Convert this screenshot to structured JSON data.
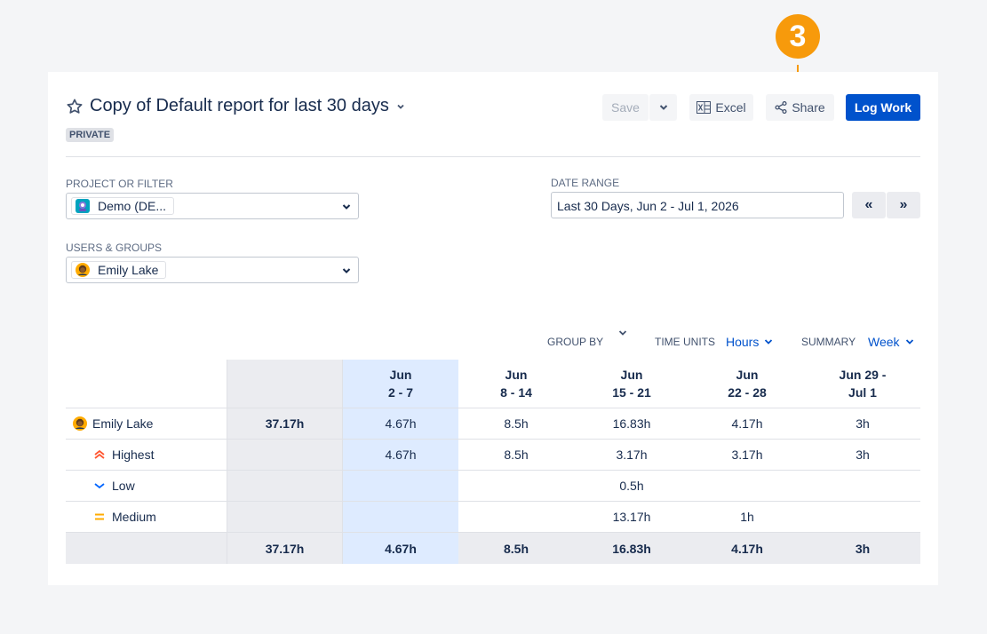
{
  "callout": {
    "number": "3"
  },
  "report": {
    "title": "Copy of Default report for last 30 days",
    "badge": "PRIVATE"
  },
  "toolbar": {
    "save_label": "Save",
    "excel_label": "Excel",
    "share_label": "Share",
    "log_work_label": "Log Work"
  },
  "filters": {
    "project_label": "PROJECT OR FILTER",
    "project_value": "Demo (DE...",
    "users_label": "USERS & GROUPS",
    "users_value": "Emily Lake",
    "date_label": "DATE RANGE",
    "date_value": "Last 30 Days, Jun 2 - Jul 1, 2026",
    "prev_label": "«",
    "next_label": "»"
  },
  "controls": {
    "group_by_label": "GROUP BY",
    "time_units_label": "TIME UNITS",
    "time_units_value": "Hours",
    "summary_label": "SUMMARY",
    "summary_value": "Week"
  },
  "table": {
    "columns": [
      {
        "line1": "Jun",
        "line2": "2 - 7"
      },
      {
        "line1": "Jun",
        "line2": "8 - 14"
      },
      {
        "line1": "Jun",
        "line2": "15 - 21"
      },
      {
        "line1": "Jun",
        "line2": "22 - 28"
      },
      {
        "line1": "Jun 29 -",
        "line2": "Jul 1"
      }
    ],
    "rows": [
      {
        "label": "Emily Lake",
        "total": "37.17h",
        "values": [
          "4.67h",
          "8.5h",
          "16.83h",
          "4.17h",
          "3h"
        ]
      },
      {
        "label": "Highest",
        "total": "",
        "values": [
          "4.67h",
          "8.5h",
          "3.17h",
          "3.17h",
          "3h"
        ]
      },
      {
        "label": "Low",
        "total": "",
        "values": [
          "",
          "",
          "0.5h",
          "",
          ""
        ]
      },
      {
        "label": "Medium",
        "total": "",
        "values": [
          "",
          "",
          "13.17h",
          "1h",
          ""
        ]
      }
    ],
    "totals": {
      "total": "37.17h",
      "values": [
        "4.67h",
        "8.5h",
        "16.83h",
        "4.17h",
        "3h"
      ]
    }
  },
  "colors": {
    "accent": "#0052cc",
    "callout": "#f79a0b",
    "highlight_column": "#deebff",
    "priority_highest": "#ff5630",
    "priority_low": "#0065ff",
    "priority_medium": "#ffab00"
  }
}
